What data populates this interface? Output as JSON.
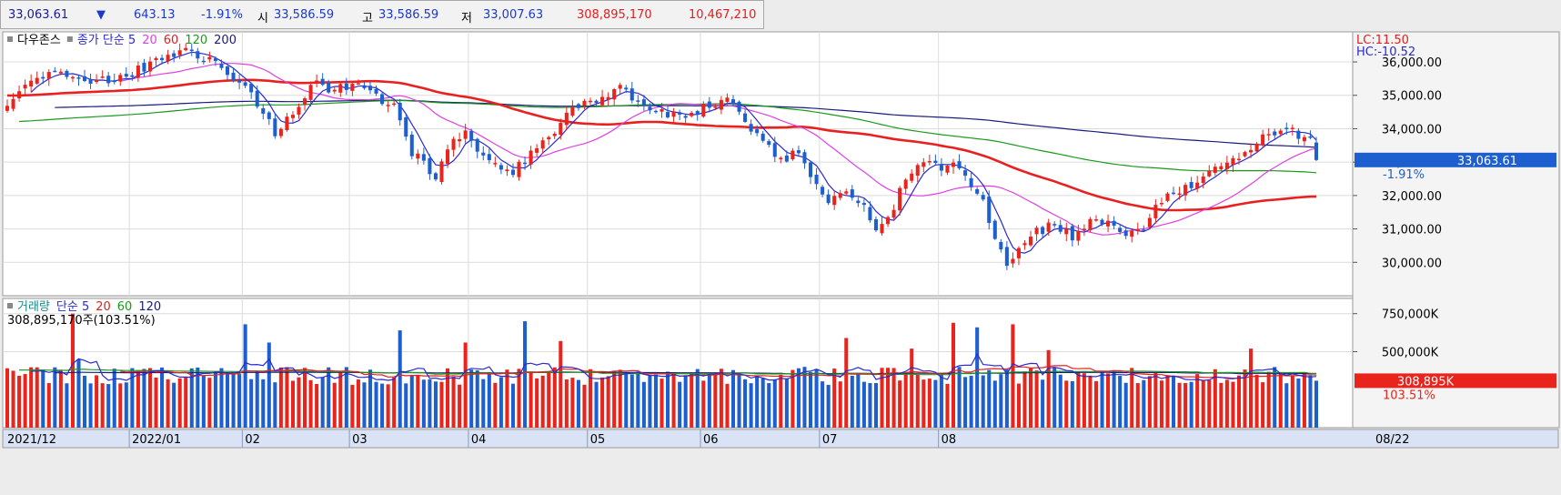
{
  "toolbar": {
    "last": "33,063.61",
    "arrow": "▼",
    "change": "643.13",
    "pct": "-1.91%",
    "open_label": "시",
    "open": "33,586.59",
    "high_label": "고",
    "high": "33,586.59",
    "low_label": "저",
    "low": "33,007.63",
    "volume": "308,895,170",
    "amount": "10,467,210"
  },
  "price_panel": {
    "legend": [
      {
        "text": "다우존스",
        "color": "#000000"
      },
      {
        "text": "종가 단순 5",
        "color": "#2a2ad0"
      },
      {
        "text": "20",
        "color": "#e040e0"
      },
      {
        "text": "60",
        "color": "#e02020"
      },
      {
        "text": "120",
        "color": "#1a9a1a"
      },
      {
        "text": "200",
        "color": "#1a1a80"
      }
    ],
    "lc": "LC:11.50",
    "hc": "HC:-10.52",
    "last_tag": "33,063.61",
    "last_pct": "-1.91%"
  },
  "volume_panel": {
    "legend": [
      {
        "text": "거래량",
        "color": "#1a8a8a"
      },
      {
        "text": "단순 5",
        "color": "#2a2ad0"
      },
      {
        "text": "20",
        "color": "#e02020"
      },
      {
        "text": "60",
        "color": "#1a9a1a"
      },
      {
        "text": "120",
        "color": "#1a1a80"
      }
    ],
    "current": "308,895,170주(103.51%)",
    "last_tag": "308,895K",
    "last_pct": "103.51%"
  },
  "x_axis": {
    "labels": [
      "2021/12",
      "2022/01",
      "02",
      "03",
      "04",
      "05",
      "06",
      "07",
      "08"
    ],
    "end_label": "08/22"
  },
  "colors": {
    "up": "#e8241c",
    "down": "#1e5fd0",
    "ma5": "#2a2ad0",
    "ma20": "#e040e0",
    "ma60": "#e82020",
    "ma120": "#1a9a1a",
    "ma200": "#1a1a80"
  },
  "chart_data": [
    {
      "type": "candlestick",
      "title": "다우존스",
      "ylim": [
        29000,
        36900
      ],
      "y_ticks": [
        "30,000.00",
        "31,000.00",
        "32,000.00",
        "33,000.00",
        "34,000.00",
        "35,000.00",
        "36,000.00"
      ],
      "y_tick_values": [
        30000,
        31000,
        32000,
        33000,
        34000,
        35000,
        36000
      ],
      "anchors_close": [
        [
          0,
          34800
        ],
        [
          4,
          35300
        ],
        [
          9,
          35700
        ],
        [
          15,
          35400
        ],
        [
          20,
          35600
        ],
        [
          25,
          36000
        ],
        [
          30,
          36300
        ],
        [
          34,
          36100
        ],
        [
          38,
          35600
        ],
        [
          42,
          34800
        ],
        [
          45,
          33900
        ],
        [
          48,
          34500
        ],
        [
          52,
          35500
        ],
        [
          55,
          35100
        ],
        [
          58,
          35400
        ],
        [
          62,
          34900
        ],
        [
          65,
          34600
        ],
        [
          68,
          33300
        ],
        [
          72,
          32600
        ],
        [
          74,
          33500
        ],
        [
          77,
          33800
        ],
        [
          81,
          33100
        ],
        [
          85,
          32700
        ],
        [
          88,
          33200
        ],
        [
          92,
          34000
        ],
        [
          95,
          34700
        ],
        [
          99,
          34800
        ],
        [
          103,
          35200
        ],
        [
          106,
          34800
        ],
        [
          110,
          34500
        ],
        [
          114,
          34300
        ],
        [
          118,
          34700
        ],
        [
          121,
          35000
        ],
        [
          124,
          34300
        ],
        [
          127,
          33600
        ],
        [
          130,
          33000
        ],
        [
          133,
          33400
        ],
        [
          136,
          32200
        ],
        [
          138,
          31800
        ],
        [
          141,
          32100
        ],
        [
          144,
          31600
        ],
        [
          146,
          31100
        ],
        [
          149,
          31700
        ],
        [
          152,
          32800
        ],
        [
          155,
          32900
        ],
        [
          159,
          32900
        ],
        [
          163,
          32200
        ],
        [
          166,
          30800
        ],
        [
          168,
          29900
        ],
        [
          170,
          30300
        ],
        [
          173,
          30900
        ],
        [
          176,
          31200
        ],
        [
          179,
          30800
        ],
        [
          182,
          31200
        ],
        [
          185,
          31300
        ],
        [
          188,
          30700
        ],
        [
          191,
          31000
        ],
        [
          194,
          31900
        ],
        [
          197,
          32000
        ],
        [
          201,
          32700
        ],
        [
          204,
          32800
        ],
        [
          208,
          33300
        ],
        [
          212,
          33800
        ],
        [
          216,
          33900
        ],
        [
          219,
          33700
        ],
        [
          220,
          33064
        ]
      ],
      "bars": 221,
      "last_close": 33063.61
    },
    {
      "type": "bar",
      "title": "거래량",
      "ylim": [
        0,
        850000
      ],
      "y_ticks": [
        "500,000K",
        "750,000K"
      ],
      "y_tick_values": [
        500000,
        750000
      ],
      "unit": "K shares",
      "base_level": 340000,
      "spikes": [
        [
          11,
          750000
        ],
        [
          12,
          450000
        ],
        [
          40,
          680000
        ],
        [
          44,
          560000
        ],
        [
          66,
          640000
        ],
        [
          77,
          560000
        ],
        [
          87,
          700000
        ],
        [
          93,
          570000
        ],
        [
          134,
          400000
        ],
        [
          141,
          590000
        ],
        [
          152,
          520000
        ],
        [
          159,
          690000
        ],
        [
          163,
          660000
        ],
        [
          169,
          680000
        ],
        [
          175,
          510000
        ],
        [
          209,
          520000
        ],
        [
          220,
          308895
        ]
      ],
      "last_value": 308895
    }
  ]
}
